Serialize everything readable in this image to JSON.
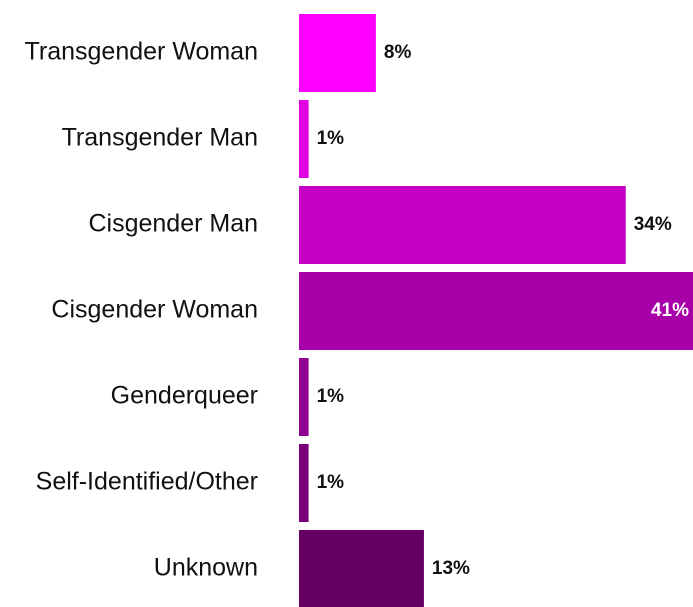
{
  "chart_data": {
    "type": "bar",
    "orientation": "horizontal",
    "categories": [
      "Transgender Woman",
      "Transgender Man",
      "Cisgender Man",
      "Cisgender Woman",
      "Genderqueer",
      "Self-Identified/Other",
      "Unknown"
    ],
    "values": [
      8,
      1,
      34,
      41,
      1,
      1,
      13
    ],
    "value_labels": [
      "8%",
      "1%",
      "34%",
      "41%",
      "1%",
      "1%",
      "13%"
    ],
    "colors": [
      "#ff00ff",
      "#e000e0",
      "#c400c4",
      "#a800a8",
      "#8e008e",
      "#7a007a",
      "#640064"
    ]
  }
}
